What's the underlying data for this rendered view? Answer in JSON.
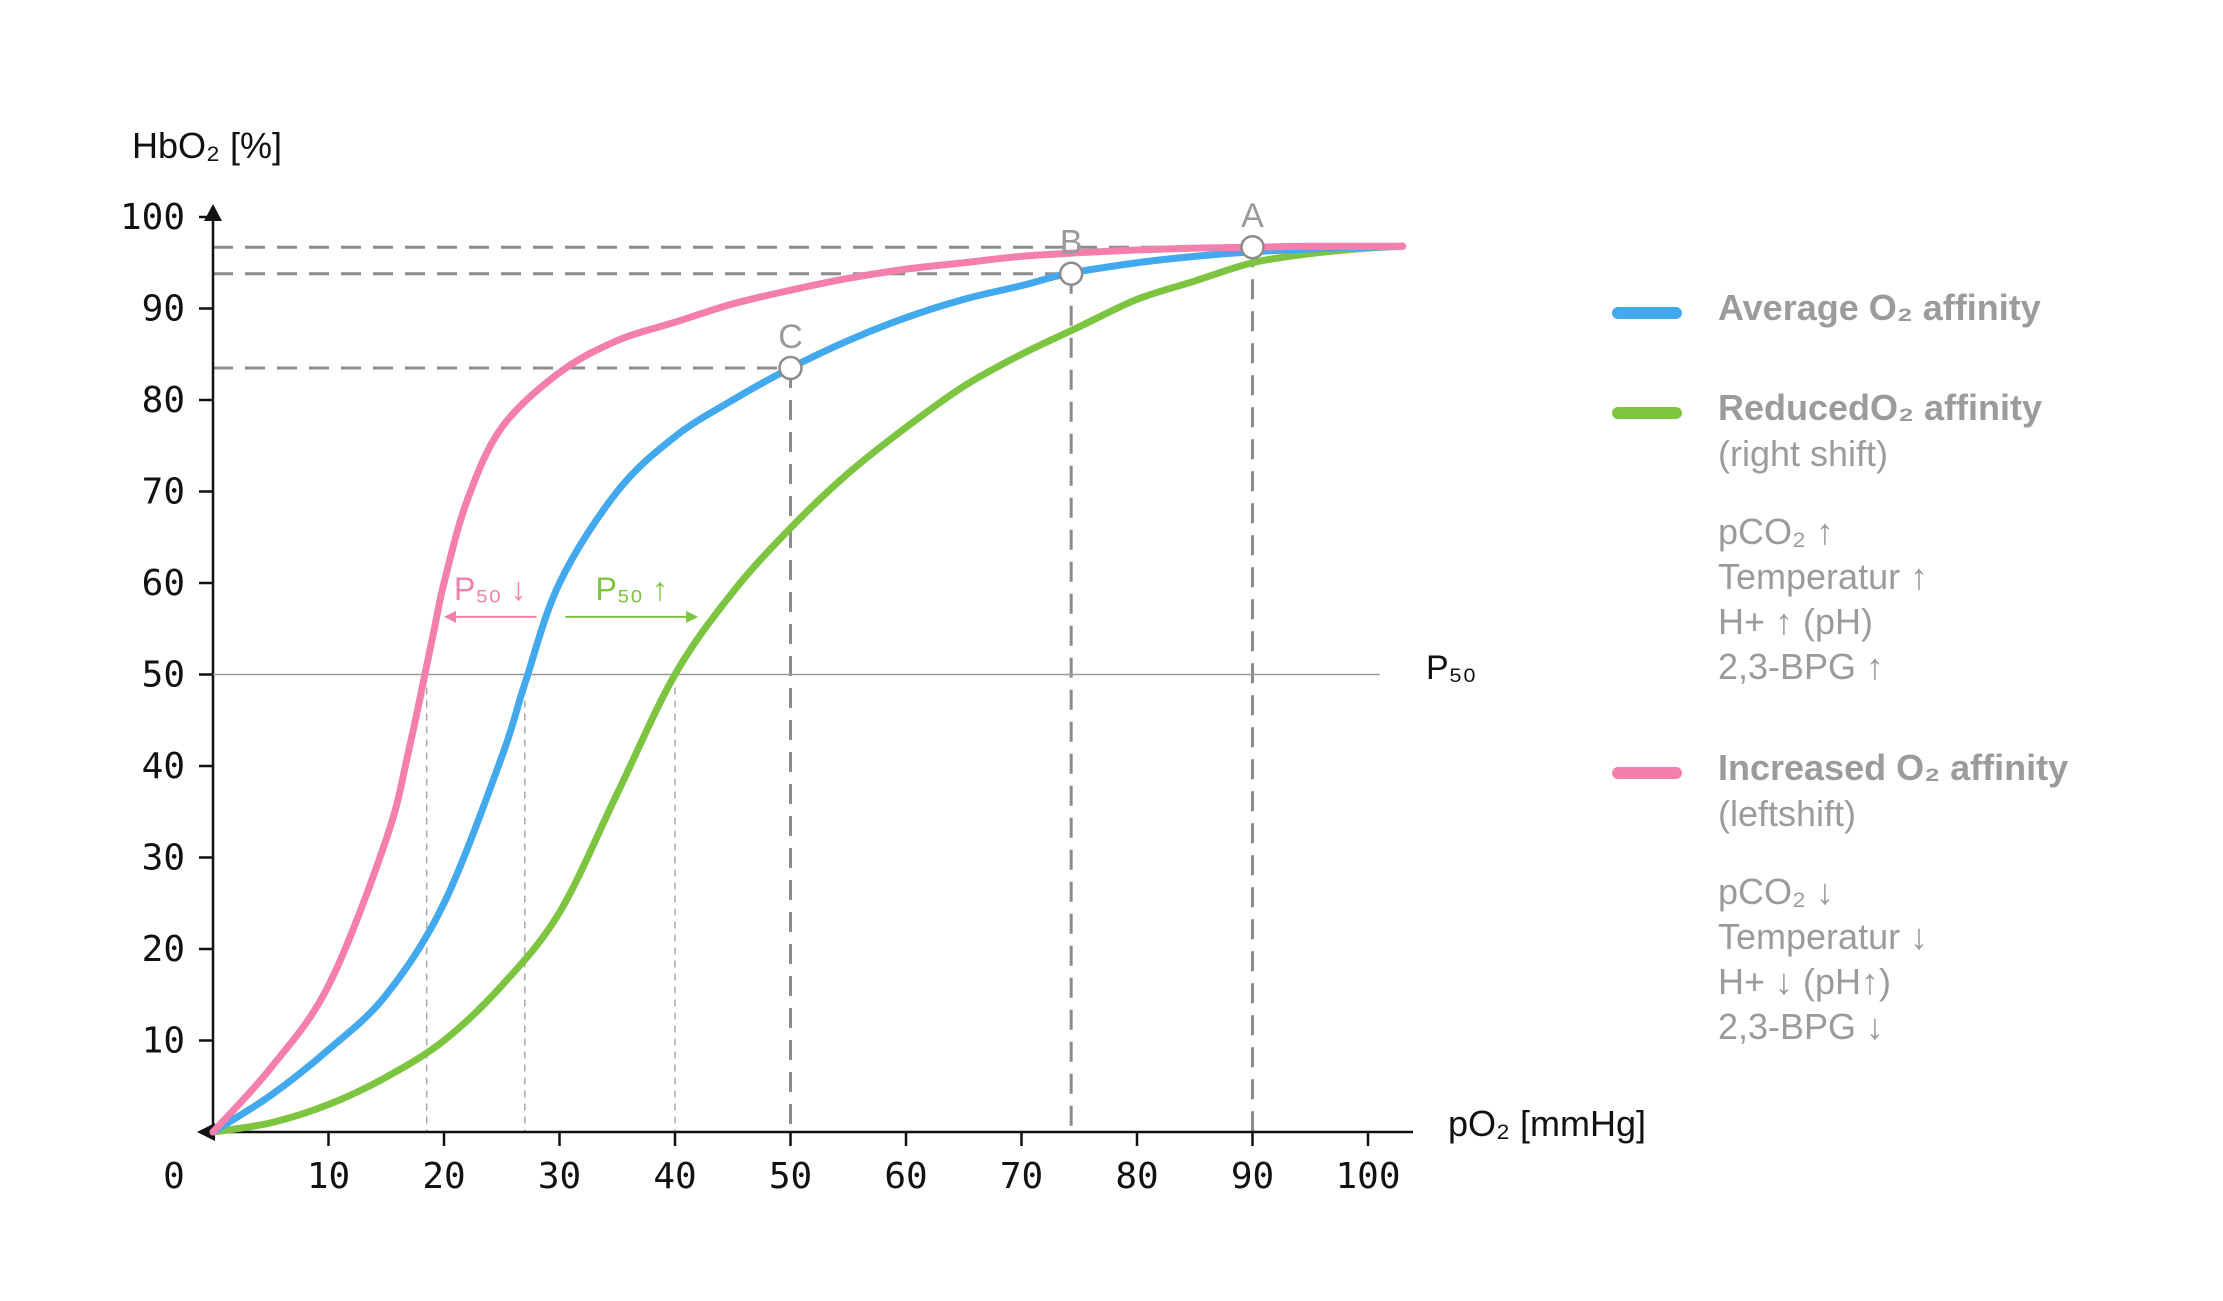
{
  "chart_data": {
    "type": "line",
    "y_axis_label": "HbO₂ [%]",
    "x_axis_label": "pO₂ [mmHg]",
    "origin_label": "0",
    "xlim": [
      0,
      103
    ],
    "ylim": [
      0,
      100
    ],
    "x_ticks": [
      10,
      20,
      30,
      40,
      50,
      60,
      70,
      80,
      90,
      100
    ],
    "y_ticks": [
      10,
      20,
      30,
      40,
      50,
      60,
      70,
      80,
      90,
      100
    ],
    "grid": false,
    "legend_position": "right",
    "p50_line": {
      "y": 50,
      "label": "P₅₀"
    },
    "series": [
      {
        "name": "Average O₂ affinity",
        "color": "#42a9ee",
        "x": [
          0,
          5,
          10,
          15,
          20,
          25,
          27,
          30,
          35,
          40,
          45,
          50,
          55,
          60,
          65,
          70,
          74,
          80,
          85,
          90,
          95,
          100,
          103
        ],
        "y": [
          0,
          4,
          9,
          15,
          25,
          41,
          49,
          60,
          70,
          76,
          80,
          83.5,
          86.5,
          89,
          91,
          92.5,
          93.8,
          95,
          95.7,
          96.2,
          96.5,
          96.7,
          96.8
        ],
        "p50": 27
      },
      {
        "name": "Reduced O₂ affinity (right shift)",
        "color": "#7dc540",
        "x": [
          0,
          5,
          10,
          15,
          20,
          25,
          30,
          35,
          40,
          45,
          50,
          55,
          60,
          65,
          70,
          75,
          80,
          85,
          90,
          95,
          100,
          103
        ],
        "y": [
          0,
          1,
          3,
          6,
          10,
          16,
          24,
          37,
          50,
          59,
          66,
          72,
          77,
          81.5,
          85,
          88,
          91,
          93,
          95,
          96,
          96.6,
          96.8
        ],
        "p50": 40
      },
      {
        "name": "Increased O₂ affinity (leftshift)",
        "color": "#f47fac",
        "x": [
          0,
          5,
          10,
          15,
          17,
          19,
          20,
          22,
          25,
          30,
          35,
          40,
          45,
          50,
          55,
          60,
          65,
          70,
          75,
          80,
          85,
          90,
          95,
          103
        ],
        "y": [
          0,
          7,
          16,
          32,
          42,
          54,
          60,
          69,
          77,
          83,
          86.5,
          88.5,
          90.5,
          92,
          93.3,
          94.3,
          95,
          95.7,
          96.1,
          96.4,
          96.6,
          96.7,
          96.8,
          96.8
        ],
        "p50": 18.5
      }
    ],
    "points": [
      {
        "label": "A",
        "x": 90,
        "y": 96.7
      },
      {
        "label": "B",
        "x": 74.3,
        "y": 93.8
      },
      {
        "label": "C",
        "x": 50,
        "y": 83.5
      }
    ],
    "annotations": [
      {
        "text": "P₅₀",
        "arrow": "↓",
        "color": "#f47fac",
        "from_x": 28,
        "to_x": 20,
        "y": 56.3
      },
      {
        "text": "P₅₀",
        "arrow": "↑",
        "color": "#7dc540",
        "from_x": 30.5,
        "to_x": 42,
        "y": 56.3
      }
    ]
  },
  "legend": {
    "average": {
      "title": "Average O₂ affinity",
      "color": "#42a9ee"
    },
    "reduced": {
      "title": "ReducedO₂ affinity",
      "subtitle": "(right shift)",
      "color": "#7dc540",
      "factors": [
        "pCO₂ ↑",
        "Temperatur ↑",
        "H+ ↑ (pH)",
        "2,3-BPG ↑"
      ]
    },
    "increased": {
      "title": "Increased O₂ affinity",
      "subtitle": "(leftshift)",
      "color": "#f47fac",
      "factors": [
        "pCO₂ ↓",
        "Temperatur ↓",
        "H+ ↓ (pH↑)",
        "2,3-BPG ↓"
      ]
    }
  }
}
